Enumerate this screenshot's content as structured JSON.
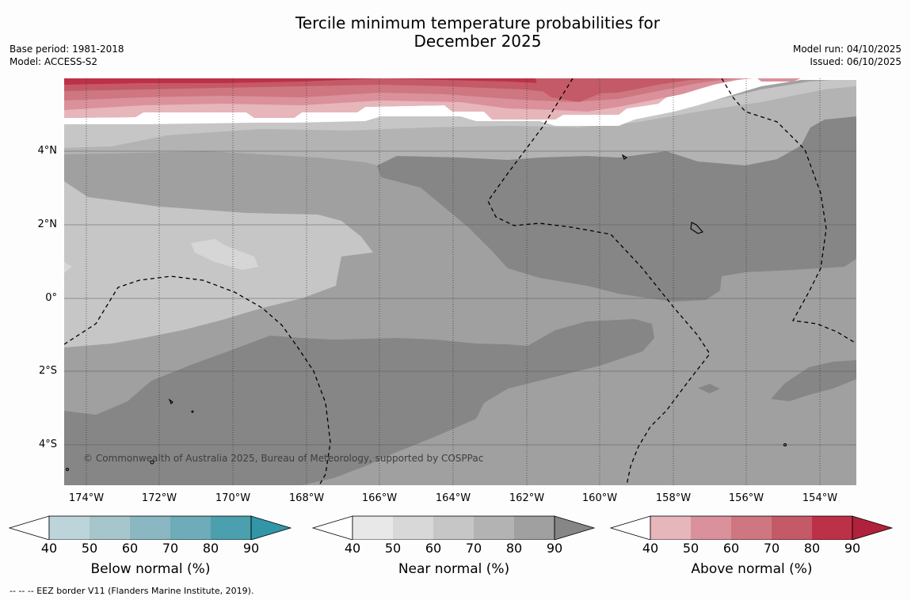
{
  "title": {
    "line1": "Tercile minimum temperature probabilities for",
    "line2": "December 2025"
  },
  "meta_left": {
    "base_period": "Base period: 1981-2018",
    "model": "Model: ACCESS-S2"
  },
  "meta_right": {
    "model_run": "Model run: 04/10/2025",
    "issued": "Issued: 06/10/2025"
  },
  "map": {
    "copyright": "© Commonwealth of Australia 2025, Bureau of Meteorology, supported by COSPPac",
    "latitude_labels": [
      "4°N",
      "2°N",
      "0°",
      "2°S",
      "4°S"
    ],
    "longitude_labels": [
      "174°W",
      "172°W",
      "170°W",
      "168°W",
      "166°W",
      "164°W",
      "162°W",
      "160°W",
      "158°W",
      "156°W",
      "154°W"
    ],
    "extent": {
      "lon_min": -174.6,
      "lon_max": -153.0,
      "lat_min": -5.2,
      "lat_max": 5.9
    }
  },
  "legends": [
    {
      "title": "Below normal (%)",
      "ticks": [
        "40",
        "50",
        "60",
        "70",
        "80",
        "90"
      ],
      "colors": [
        "#bdd4da",
        "#a7c6cc",
        "#8bb7c3",
        "#6eacb9",
        "#4c9fae",
        "#3196a8"
      ]
    },
    {
      "title": "Near normal (%)",
      "ticks": [
        "40",
        "50",
        "60",
        "70",
        "80",
        "90"
      ],
      "colors": [
        "#e8e8e8",
        "#d8d8d8",
        "#c6c6c6",
        "#b3b3b3",
        "#a0a0a0",
        "#868686"
      ]
    },
    {
      "title": "Above normal (%)",
      "ticks": [
        "40",
        "50",
        "60",
        "70",
        "80",
        "90"
      ],
      "colors": [
        "#e6b6bb",
        "#da919b",
        "#ce7780",
        "#c45a67",
        "#bd3148",
        "#b0213b"
      ]
    }
  ],
  "footnote": "--  --  -- EEZ border V11 (Flanders Marine Institute, 2019).",
  "palette": {
    "near_light": "#c6c6c6",
    "near_mid": "#a0a0a0",
    "near_dark": "#868686",
    "above_1": "#e6b6bb",
    "above_2": "#da919b",
    "above_3": "#ce7780",
    "above_4": "#c45a67",
    "above_5": "#bd3148"
  }
}
